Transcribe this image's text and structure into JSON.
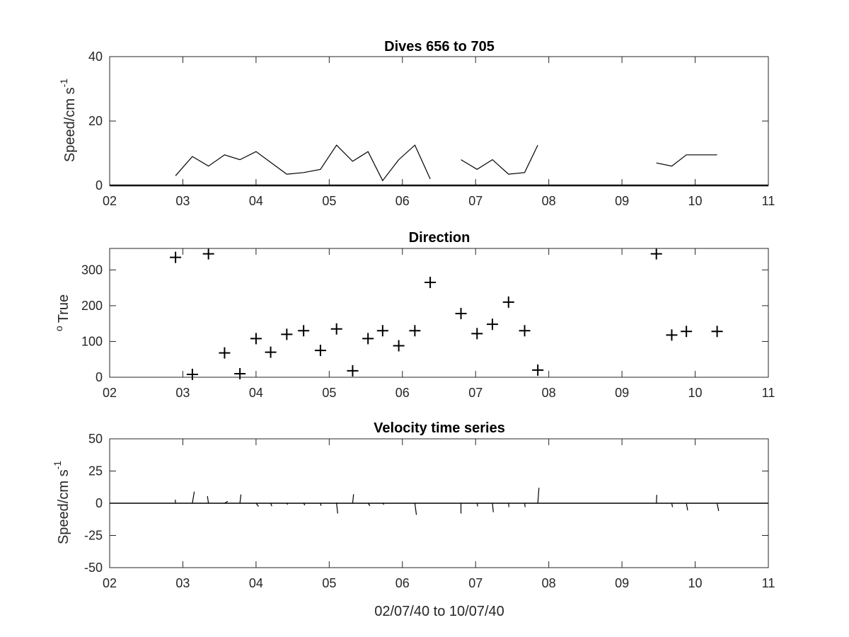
{
  "chart_data": [
    {
      "type": "line",
      "title": "Dives 656 to 705",
      "ylabel": "Speed/cm s",
      "ylabel_superscript": "-1",
      "xlabel": "",
      "xlim": [
        2,
        11
      ],
      "ylim": [
        0,
        40
      ],
      "xticks": [
        "02",
        "03",
        "04",
        "05",
        "06",
        "07",
        "08",
        "09",
        "10",
        "11"
      ],
      "yticks": [
        "0",
        "20",
        "40"
      ],
      "segments": [
        [
          [
            2.9,
            3
          ],
          [
            3.13,
            9
          ],
          [
            3.35,
            6
          ],
          [
            3.57,
            9.5
          ],
          [
            3.78,
            8
          ],
          [
            4.0,
            10.5
          ],
          [
            4.42,
            3.5
          ],
          [
            4.65,
            4
          ],
          [
            4.88,
            5
          ],
          [
            5.1,
            12.5
          ],
          [
            5.32,
            7.5
          ],
          [
            5.53,
            10.5
          ],
          [
            5.73,
            1.5
          ],
          [
            5.95,
            8
          ],
          [
            6.17,
            12.5
          ],
          [
            6.38,
            2
          ]
        ],
        [
          [
            6.8,
            8
          ],
          [
            7.02,
            5
          ],
          [
            7.23,
            8
          ],
          [
            7.45,
            3.5
          ],
          [
            7.67,
            4
          ],
          [
            7.85,
            12.5
          ]
        ],
        [
          [
            9.47,
            7
          ],
          [
            9.68,
            6
          ],
          [
            9.88,
            9.5
          ],
          [
            10.3,
            9.5
          ]
        ]
      ],
      "grid": false
    },
    {
      "type": "scatter",
      "title": "Direction",
      "ylabel": "True",
      "ylabel_prefix": "o",
      "xlabel": "",
      "xlim": [
        2,
        11
      ],
      "ylim": [
        0,
        360
      ],
      "xticks": [
        "02",
        "03",
        "04",
        "05",
        "06",
        "07",
        "08",
        "09",
        "10",
        "11"
      ],
      "yticks": [
        "0",
        "100",
        "200",
        "300"
      ],
      "marker": "+",
      "points": [
        [
          2.9,
          335
        ],
        [
          3.13,
          8
        ],
        [
          3.35,
          345
        ],
        [
          3.57,
          68
        ],
        [
          3.78,
          10
        ],
        [
          4.0,
          108
        ],
        [
          4.2,
          70
        ],
        [
          4.42,
          120
        ],
        [
          4.65,
          130
        ],
        [
          4.88,
          75
        ],
        [
          5.1,
          135
        ],
        [
          5.32,
          18
        ],
        [
          5.53,
          108
        ],
        [
          5.73,
          130
        ],
        [
          5.95,
          88
        ],
        [
          6.17,
          130
        ],
        [
          6.38,
          265
        ],
        [
          6.8,
          178
        ],
        [
          7.02,
          122
        ],
        [
          7.23,
          148
        ],
        [
          7.45,
          210
        ],
        [
          7.67,
          130
        ],
        [
          7.85,
          20
        ],
        [
          9.47,
          345
        ],
        [
          9.68,
          118
        ],
        [
          9.88,
          128
        ],
        [
          10.3,
          128
        ]
      ],
      "grid": false
    },
    {
      "type": "line",
      "subtype": "stick-plot",
      "title": "Velocity time series",
      "ylabel": "Speed/cm s",
      "ylabel_superscript": "-1",
      "xlabel": "02/07/40 to 10/07/40",
      "xlim": [
        2,
        11
      ],
      "ylim": [
        -50,
        50
      ],
      "xticks": [
        "02",
        "03",
        "04",
        "05",
        "06",
        "07",
        "08",
        "09",
        "10",
        "11"
      ],
      "yticks": [
        "50",
        "25",
        "0",
        "-25",
        "-50"
      ],
      "zero_line": true,
      "sticks": [
        [
          2.9,
          -0.2,
          2.8
        ],
        [
          3.13,
          1.5,
          9
        ],
        [
          3.35,
          -0.8,
          5.5
        ],
        [
          3.57,
          2.5,
          1.5
        ],
        [
          3.78,
          0.8,
          6.8
        ],
        [
          4.0,
          2.0,
          -2.5
        ],
        [
          4.2,
          0.9,
          -2.3
        ],
        [
          4.42,
          0.7,
          -1.0
        ],
        [
          4.65,
          1.0,
          -1.5
        ],
        [
          4.88,
          0.5,
          -2.0
        ],
        [
          5.1,
          0.6,
          0.3
        ],
        [
          5.1,
          0.9,
          -8.0
        ],
        [
          5.32,
          0.7,
          7.0
        ],
        [
          5.53,
          1.5,
          -2.0
        ],
        [
          5.73,
          1.0,
          -1.0
        ],
        [
          6.17,
          1.2,
          -9.0
        ],
        [
          6.8,
          0.0,
          -8.0
        ],
        [
          7.02,
          0.5,
          -2.5
        ],
        [
          7.23,
          0.7,
          -7.0
        ],
        [
          7.45,
          0.3,
          -3.0
        ],
        [
          7.67,
          0.4,
          -3.0
        ],
        [
          7.85,
          0.9,
          12.0
        ],
        [
          9.47,
          0.3,
          6.5
        ],
        [
          9.68,
          0.6,
          -3.0
        ],
        [
          9.88,
          1.0,
          -5.5
        ],
        [
          10.3,
          1.2,
          -6.0
        ]
      ],
      "grid": false
    }
  ]
}
